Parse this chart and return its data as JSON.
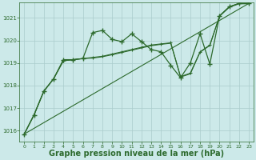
{
  "background_color": "#cce9e9",
  "grid_color": "#aacccc",
  "line_color": "#2d6a2d",
  "xlabel": "Graphe pression niveau de la mer (hPa)",
  "xlim": [
    -0.5,
    23.5
  ],
  "ylim": [
    1015.5,
    1021.7
  ],
  "yticks": [
    1016,
    1017,
    1018,
    1019,
    1020,
    1021
  ],
  "xticks": [
    0,
    1,
    2,
    3,
    4,
    5,
    6,
    7,
    8,
    9,
    10,
    11,
    12,
    13,
    14,
    15,
    16,
    17,
    18,
    19,
    20,
    21,
    22,
    23
  ],
  "line1_x": [
    0,
    1,
    2,
    3,
    4,
    5,
    6,
    7,
    8,
    9,
    10,
    11,
    12,
    13,
    14,
    15,
    16,
    17,
    18,
    19,
    20,
    21,
    22,
    23
  ],
  "line1_y": [
    1015.85,
    1016.7,
    1017.75,
    1018.3,
    1019.15,
    1019.15,
    1019.2,
    1020.35,
    1020.45,
    1020.05,
    1019.95,
    1020.3,
    1019.95,
    1019.6,
    1019.5,
    1018.9,
    1018.35,
    1019.0,
    1020.3,
    1018.95,
    1021.1,
    1021.5,
    1021.65,
    1021.65
  ],
  "line1_marker": true,
  "line2_x": [
    0,
    1,
    2,
    3,
    4,
    5,
    6,
    7,
    8,
    9,
    10,
    11,
    12,
    13,
    14,
    15,
    16,
    17,
    18,
    19,
    20,
    21,
    22,
    23
  ],
  "line2_y": [
    1015.85,
    1016.7,
    1017.75,
    1018.3,
    1019.1,
    1019.15,
    1019.2,
    1019.25,
    1019.3,
    1019.4,
    1019.5,
    1019.6,
    1019.7,
    1019.8,
    1019.85,
    1019.9,
    1018.4,
    1018.55,
    1019.5,
    1019.8,
    1021.1,
    1021.5,
    1021.65,
    1021.65
  ],
  "line2_marker": true,
  "line3_x": [
    0,
    1,
    2,
    3,
    4,
    5,
    6,
    7,
    8,
    9,
    10,
    11,
    12,
    13,
    14,
    15,
    16,
    17,
    18,
    19,
    20,
    21,
    22,
    23
  ],
  "line3_y": [
    1015.85,
    1016.7,
    1017.75,
    1018.3,
    1019.1,
    1019.15,
    1019.2,
    1019.22,
    1019.28,
    1019.37,
    1019.47,
    1019.57,
    1019.67,
    1019.77,
    1019.83,
    1019.88,
    1018.38,
    1018.52,
    1019.48,
    1019.78,
    1021.08,
    1021.48,
    1021.63,
    1021.63
  ],
  "line3_marker": false,
  "line4_x": [
    0,
    23
  ],
  "line4_y": [
    1015.85,
    1021.65
  ],
  "line4_marker": false
}
